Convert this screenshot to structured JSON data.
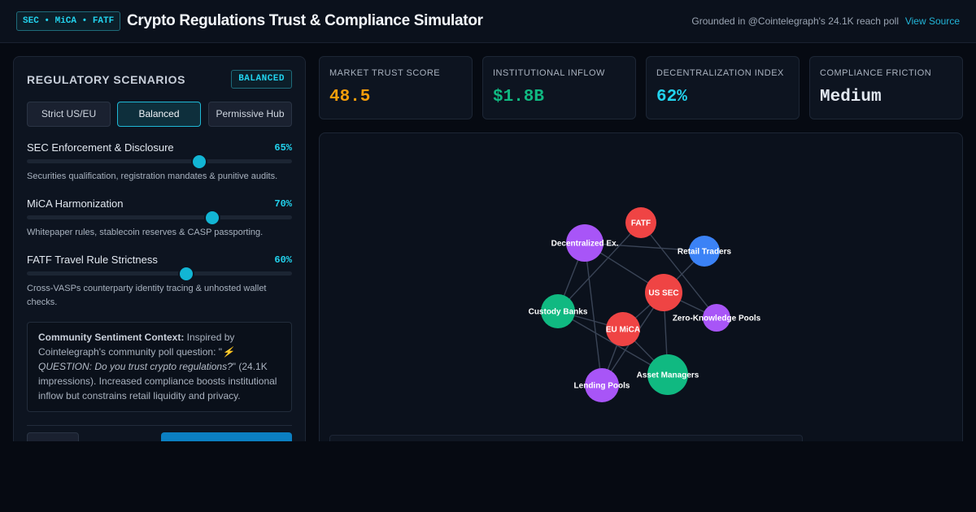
{
  "header": {
    "badge": "SEC • MiCA • FATF",
    "title": "Crypto Regulations Trust & Compliance Simulator",
    "grounded_text": "Grounded in @Cointelegraph's 24.1K reach poll",
    "source_link": "View Source"
  },
  "left_panel": {
    "title": "REGULATORY SCENARIOS",
    "mode_badge": "BALANCED",
    "scenarios": [
      {
        "label": "Strict US/EU",
        "active": false
      },
      {
        "label": "Balanced",
        "active": true
      },
      {
        "label": "Permissive Hub",
        "active": false
      }
    ],
    "sliders": [
      {
        "label": "SEC Enforcement & Disclosure",
        "value_text": "65%",
        "value": 65,
        "description": "Securities qualification, registration mandates & punitive audits."
      },
      {
        "label": "MiCA Harmonization",
        "value_text": "70%",
        "value": 70,
        "description": "Whitepaper rules, stablecoin reserves & CASP passporting."
      },
      {
        "label": "FATF Travel Rule Strictness",
        "value_text": "60%",
        "value": 60,
        "description": "Cross-VASPs counterparty identity tracing & unhosted wallet checks."
      }
    ],
    "context": {
      "heading": "Community Sentiment Context:",
      "before": " Inspired by Cointelegraph's community poll question: \"",
      "quote": "⚡ QUESTION: Do you trust crypto regulations?",
      "after": "\" (24.1K impressions). Increased compliance boosts institutional inflow but constrains retail liquidity and privacy."
    }
  },
  "metrics": [
    {
      "label": "MARKET TRUST SCORE",
      "value": "48.5",
      "color": "#f59e0b"
    },
    {
      "label": "INSTITUTIONAL INFLOW",
      "value": "$1.8B",
      "color": "#10b981"
    },
    {
      "label": "DECENTRALIZATION INDEX",
      "value": "62%",
      "color": "#22d3ee"
    },
    {
      "label": "COMPLIANCE FRICTION",
      "value": "Medium",
      "color": "#e2e8f0"
    }
  ],
  "network": {
    "nodes": [
      {
        "id": "fatf",
        "label": "FATF",
        "color": "#ef4444"
      },
      {
        "id": "dex",
        "label": "Decentralized Ex.",
        "color": "#a855f7"
      },
      {
        "id": "retail",
        "label": "Retail Traders",
        "color": "#3b82f6"
      },
      {
        "id": "ussec",
        "label": "US SEC",
        "color": "#ef4444"
      },
      {
        "id": "zkp",
        "label": "Zero-Knowledge Pools",
        "color": "#a855f7"
      },
      {
        "id": "custody",
        "label": "Custody Banks",
        "color": "#10b981"
      },
      {
        "id": "eumica",
        "label": "EU MiCA",
        "color": "#ef4444"
      },
      {
        "id": "asset",
        "label": "Asset Managers",
        "color": "#10b981"
      },
      {
        "id": "lending",
        "label": "Lending Pools",
        "color": "#a855f7"
      }
    ],
    "edges": [
      [
        "fatf",
        "custody"
      ],
      [
        "fatf",
        "zkp"
      ],
      [
        "dex",
        "retail"
      ],
      [
        "dex",
        "ussec"
      ],
      [
        "dex",
        "custody"
      ],
      [
        "dex",
        "lending"
      ],
      [
        "retail",
        "ussec"
      ],
      [
        "ussec",
        "zkp"
      ],
      [
        "ussec",
        "eumica"
      ],
      [
        "ussec",
        "lending"
      ],
      [
        "ussec",
        "asset"
      ],
      [
        "custody",
        "eumica"
      ],
      [
        "custody",
        "asset"
      ],
      [
        "eumica",
        "lending"
      ],
      [
        "eumica",
        "asset"
      ]
    ]
  }
}
